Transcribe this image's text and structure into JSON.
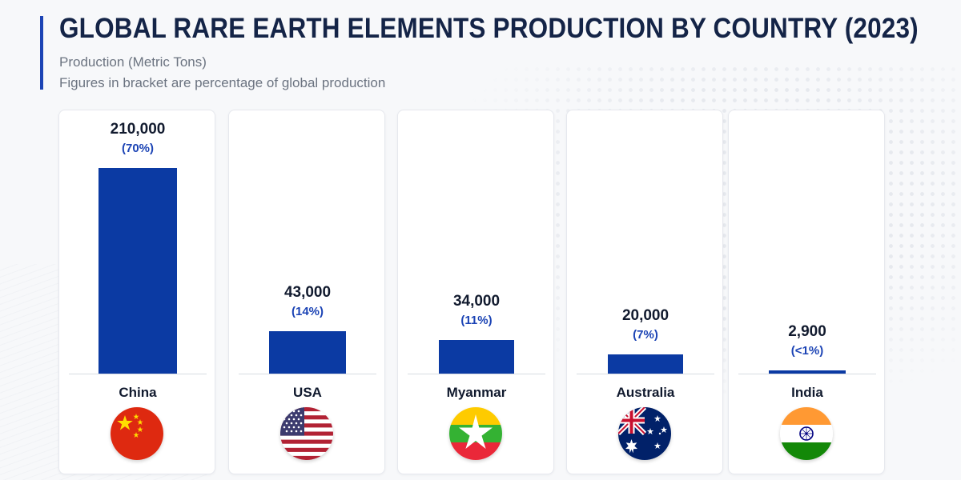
{
  "header": {
    "title": "GLOBAL RARE EARTH ELEMENTS PRODUCTION BY COUNTRY (2023)",
    "subtitle": "Production (Metric Tons)",
    "note": "Figures in bracket are percentage of global production"
  },
  "colors": {
    "accent": "#1c44b5",
    "bar": "#0b3aa3",
    "title": "#142447",
    "percent_text": "#1c44b5"
  },
  "chart_data": {
    "type": "bar",
    "title": "GLOBAL RARE EARTH ELEMENTS PRODUCTION BY COUNTRY (2023)",
    "ylabel": "Production (Metric Tons)",
    "xlabel": "",
    "ylim": [
      0,
      210000
    ],
    "grid": false,
    "categories": [
      "China",
      "USA",
      "Myanmar",
      "Australia",
      "India"
    ],
    "values": [
      210000,
      43000,
      34000,
      20000,
      2900
    ],
    "value_labels": [
      "210,000",
      "43,000",
      "34,000",
      "20,000",
      "2,900"
    ],
    "percent_labels": [
      "(70%)",
      "(14%)",
      "(11%)",
      "(7%)",
      "(<1%)"
    ],
    "flag_icons": [
      "china-flag-icon",
      "usa-flag-icon",
      "myanmar-flag-icon",
      "australia-flag-icon",
      "india-flag-icon"
    ]
  }
}
